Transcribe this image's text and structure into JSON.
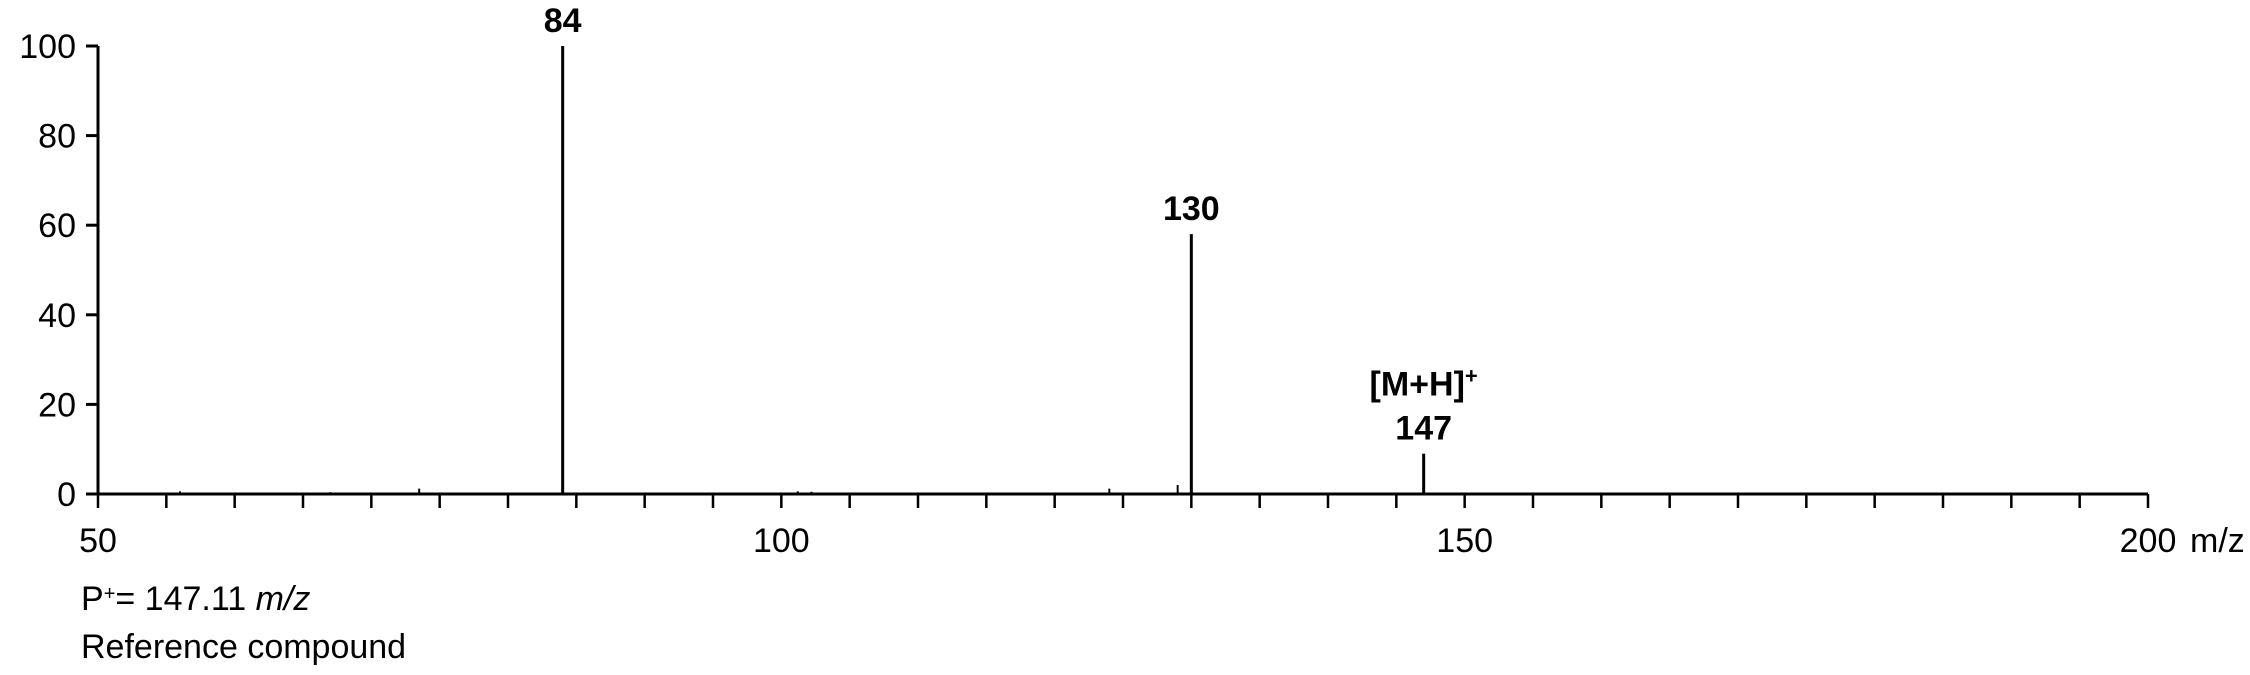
{
  "chart_data": {
    "type": "bar",
    "title": "",
    "xlabel": "m/z",
    "ylabel": "",
    "xlim": [
      50,
      200
    ],
    "ylim": [
      0,
      100
    ],
    "x_ticks": [
      50,
      100,
      150,
      200
    ],
    "x_tick_labels": [
      "50",
      "100",
      "150",
      "200"
    ],
    "x_minor_step": 5,
    "y_ticks": [
      0,
      20,
      40,
      60,
      80,
      100
    ],
    "y_tick_labels": [
      "0",
      "20",
      "40",
      "60",
      "80",
      "100"
    ],
    "grid": false,
    "series": [
      {
        "peaks": [
          {
            "x": 56,
            "y": 0.6
          },
          {
            "x": 67,
            "y": 0.4
          },
          {
            "x": 73.5,
            "y": 1.2
          },
          {
            "x": 84,
            "y": 100,
            "label": "84"
          },
          {
            "x": 101.2,
            "y": 0.6
          },
          {
            "x": 102.2,
            "y": 0.5
          },
          {
            "x": 112,
            "y": 0.3
          },
          {
            "x": 124,
            "y": 1.2
          },
          {
            "x": 129,
            "y": 2.0
          },
          {
            "x": 130,
            "y": 58,
            "label": "130"
          },
          {
            "x": 147,
            "y": 9,
            "label": "147",
            "annotation": "[M+H]",
            "annotation_sup": "+"
          },
          {
            "x": 152,
            "y": 0.3
          }
        ]
      }
    ]
  },
  "notes": {
    "precursor_prefix": "P",
    "precursor_sup": "+",
    "precursor_eq": "=  147.11 ",
    "precursor_unit": "m/z",
    "compound": "Reference compound"
  }
}
